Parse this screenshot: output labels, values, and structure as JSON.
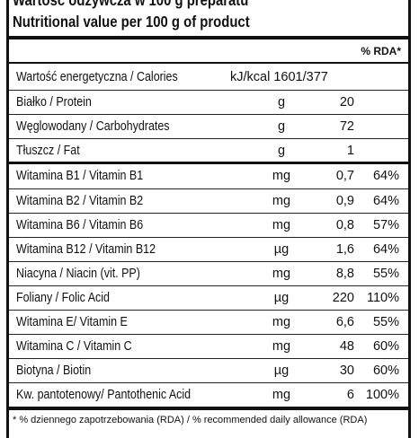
{
  "header": {
    "title_pl": "Wartość odżywcza w 100 g preparatu",
    "title_en": "Nutritional value per 100 g of product",
    "rda_label": "% RDA*"
  },
  "calories": {
    "name": "Wartość energetyczna / Calories",
    "value": "kJ/kcal 1601/377"
  },
  "macros": [
    {
      "name": "Białko / Protein",
      "unit": "g",
      "value": "20"
    },
    {
      "name": "Węglowodany / Carbohydrates",
      "unit": "g",
      "value": "72"
    },
    {
      "name": "Tłuszcz / Fat",
      "unit": "g",
      "value": "1"
    }
  ],
  "vitamins": [
    {
      "name": "Witamina B1 / Vitamin B1",
      "unit": "mg",
      "value": "0,7",
      "rda": "64%"
    },
    {
      "name": "Witamina B2 / Vitamin B2",
      "unit": "mg",
      "value": "0,9",
      "rda": "64%"
    },
    {
      "name": "Witamina B6 / Vitamin B6",
      "unit": "mg",
      "value": "0,8",
      "rda": "57%"
    },
    {
      "name": "Witamina B12 / Vitamin B12",
      "unit": "µg",
      "value": "1,6",
      "rda": "64%"
    },
    {
      "name": "Niacyna / Niacin (vit. PP)",
      "unit": "mg",
      "value": "8,8",
      "rda": "55%"
    },
    {
      "name": "Foliany / Folic Acid",
      "unit": "µg",
      "value": "220",
      "rda": "110%"
    },
    {
      "name": "Witamina E/ Vitamin E",
      "unit": "mg",
      "value": "6,6",
      "rda": "55%"
    },
    {
      "name": "Witamina C / Vitamin C",
      "unit": "mg",
      "value": "48",
      "rda": "60%"
    },
    {
      "name": "Biotyna / Biotin",
      "unit": "µg",
      "value": "30",
      "rda": "60%"
    },
    {
      "name": "Kw. pantotenowy/ Pantothenic Acid",
      "unit": "mg",
      "value": "6",
      "rda": "100%"
    }
  ],
  "footer": "* % dziennego zapotrzebowania (RDA) / % recommended daily allowance (RDA)"
}
